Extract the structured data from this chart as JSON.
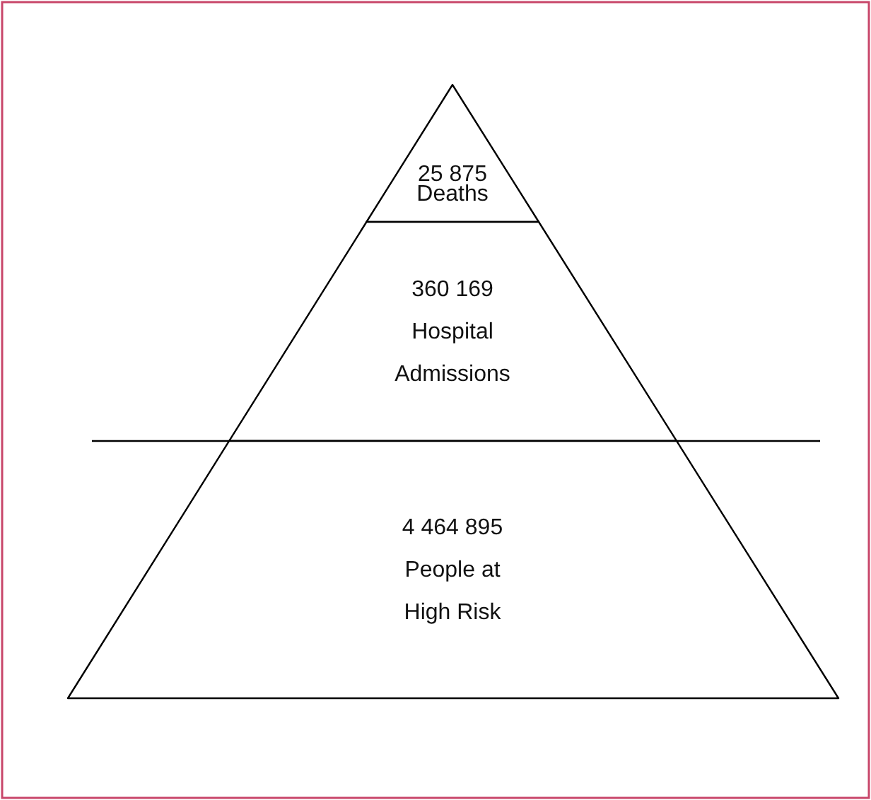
{
  "chart_data": {
    "type": "other",
    "categories": [
      "Deaths",
      "Hospital Admissions",
      "People at High Risk"
    ],
    "values": [
      25875,
      360169,
      4464895
    ],
    "data_labels": true
  }
}
